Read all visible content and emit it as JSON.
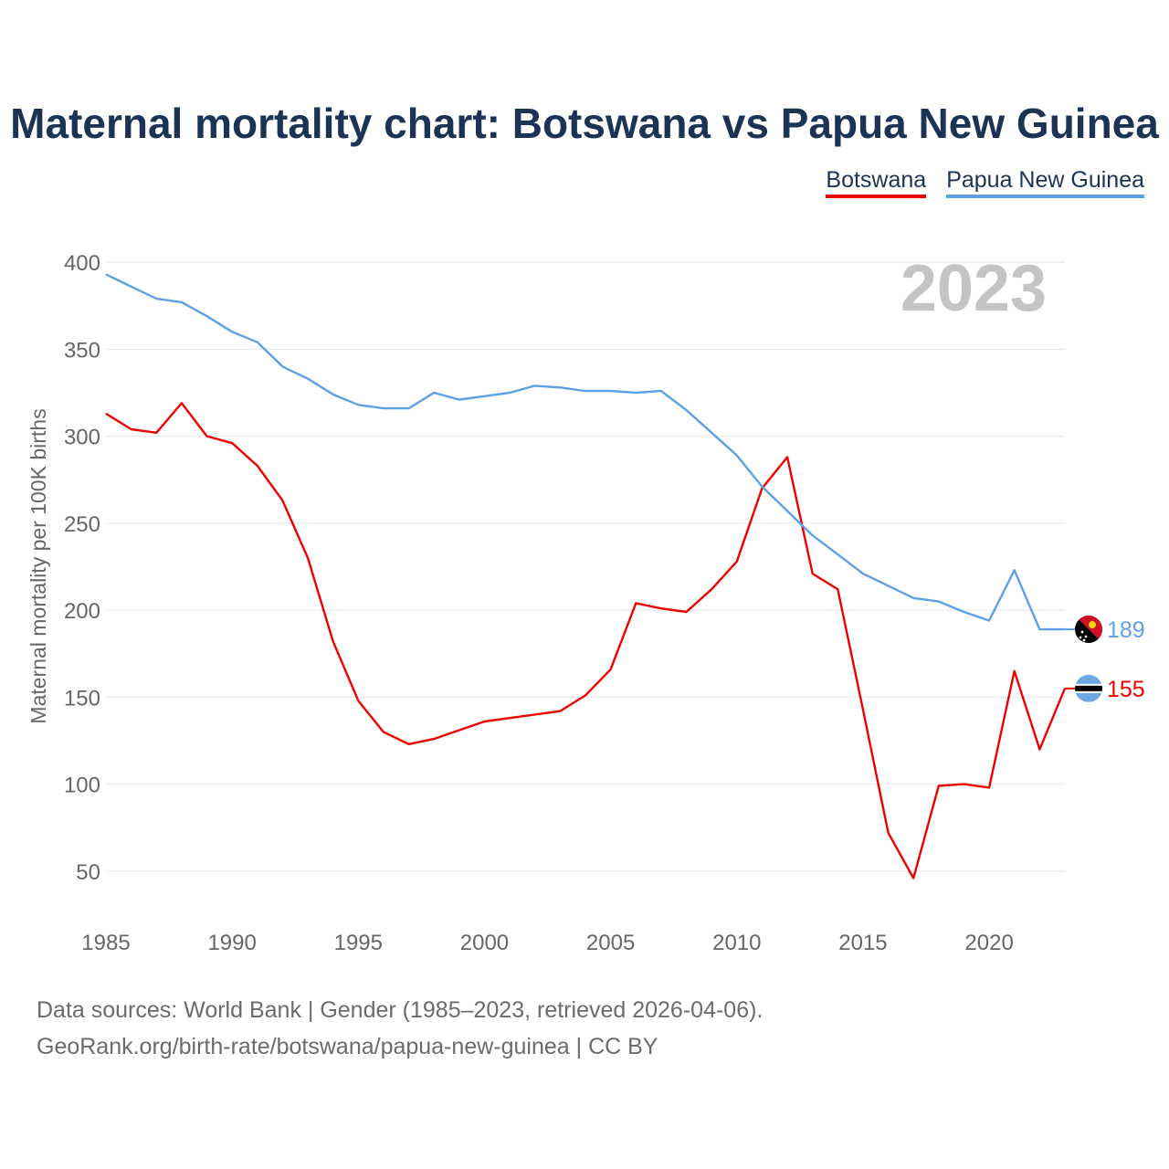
{
  "title": "Maternal mortality chart: Botswana vs Papua New Guinea",
  "legend": [
    {
      "label": "Botswana",
      "color": "#ee0000"
    },
    {
      "label": "Papua New Guinea",
      "color": "#5da0e6"
    }
  ],
  "footer": {
    "line1": "Data sources: World Bank | Gender (1985–2023, retrieved 2026-04-06).",
    "line2": "GeoRank.org/birth-rate/botswana/papua-new-guinea | CC BY"
  },
  "chart_data": {
    "type": "line",
    "title": "Maternal mortality chart: Botswana vs Papua New Guinea",
    "year_label": "2023",
    "xlabel": "",
    "ylabel": "Maternal mortality per 100K births",
    "xlim": [
      1985,
      2023
    ],
    "ylim": [
      20,
      420
    ],
    "x_ticks": [
      1985,
      1990,
      1995,
      2000,
      2005,
      2010,
      2015,
      2020
    ],
    "y_ticks": [
      50,
      100,
      150,
      200,
      250,
      300,
      350,
      400
    ],
    "x": [
      1985,
      1986,
      1987,
      1988,
      1989,
      1990,
      1991,
      1992,
      1993,
      1994,
      1995,
      1996,
      1997,
      1998,
      1999,
      2000,
      2001,
      2002,
      2003,
      2004,
      2005,
      2006,
      2007,
      2008,
      2009,
      2010,
      2011,
      2012,
      2013,
      2014,
      2015,
      2016,
      2017,
      2018,
      2019,
      2020,
      2021,
      2022,
      2023
    ],
    "series": [
      {
        "name": "Botswana",
        "color": "#ee0000",
        "end_label": "155",
        "flag": "botswana-flag-icon",
        "values": [
          313,
          304,
          302,
          319,
          300,
          296,
          283,
          263,
          230,
          182,
          148,
          130,
          123,
          126,
          131,
          136,
          138,
          140,
          142,
          151,
          166,
          204,
          201,
          199,
          212,
          228,
          270,
          288,
          221,
          212,
          143,
          72,
          46,
          99,
          100,
          98,
          165,
          120,
          155
        ]
      },
      {
        "name": "Papua New Guinea",
        "color": "#5da0e6",
        "end_label": "189",
        "flag": "papua-new-guinea-flag-icon",
        "values": [
          393,
          386,
          379,
          377,
          369,
          360,
          354,
          340,
          333,
          324,
          318,
          316,
          316,
          325,
          321,
          323,
          325,
          329,
          328,
          326,
          326,
          325,
          326,
          315,
          302,
          289,
          271,
          257,
          243,
          232,
          221,
          214,
          207,
          205,
          199,
          194,
          223,
          189,
          189
        ]
      }
    ]
  }
}
